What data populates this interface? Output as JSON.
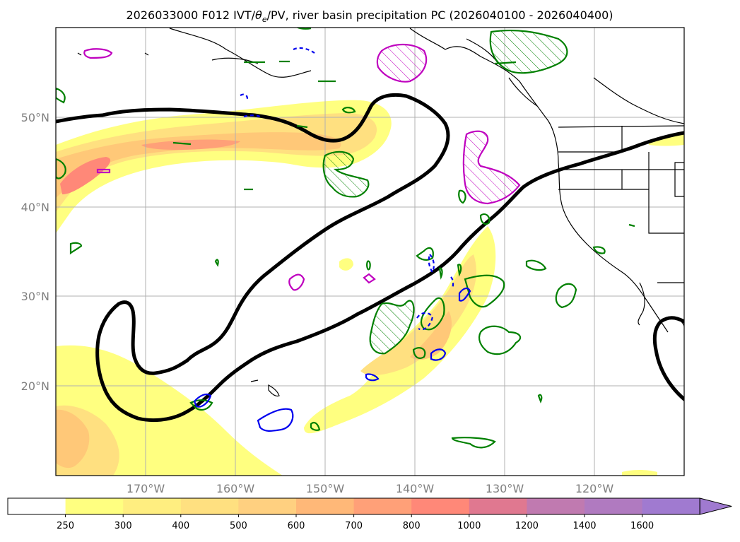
{
  "title": {
    "prefix": "2026033000 F012 IVT/",
    "theta_symbol": "θ",
    "theta_sub": "e",
    "suffix": "/PV, river basin precipitation PC (2026040100 - 2026040400)"
  },
  "map": {
    "projection": "PlateCarree",
    "lon_range": [
      -180,
      -110
    ],
    "lat_range": [
      10,
      60
    ],
    "gridlines": true,
    "lat_ticks": [
      {
        "value": 20,
        "label": "20°N"
      },
      {
        "value": 30,
        "label": "30°N"
      },
      {
        "value": 40,
        "label": "40°N"
      },
      {
        "value": 50,
        "label": "50°N"
      }
    ],
    "lon_ticks": [
      {
        "value": -170,
        "label": "170°W"
      },
      {
        "value": -160,
        "label": "160°W"
      },
      {
        "value": -150,
        "label": "150°W"
      },
      {
        "value": -140,
        "label": "140°W"
      },
      {
        "value": -130,
        "label": "130°W"
      },
      {
        "value": -120,
        "label": "120°W"
      }
    ],
    "layers": {
      "ivt_fill": "IVT shaded (yellow–orange–red–purple)",
      "pv_contour": "black thick contour",
      "precip_pc_green": "green contours with hatch",
      "precip_pc_magenta": "magenta contours with hatch",
      "precip_pc_blue": "blue contours (solid/dashed)"
    },
    "colors": {
      "coast": "#000000",
      "pv": "#000000",
      "green": "#008000",
      "magenta": "#bf00bf",
      "blue": "#0000ee",
      "grid": "#b0b0b0"
    }
  },
  "colorbar": {
    "ticks": [
      "250",
      "300",
      "400",
      "500",
      "600",
      "700",
      "800",
      "1000",
      "1200",
      "1400",
      "1600"
    ],
    "colors": [
      "#ffffff",
      "#ffff80",
      "#ffee80",
      "#ffe080",
      "#ffd080",
      "#ffb878",
      "#ffa078",
      "#ff8878",
      "#e07890",
      "#c07ab0",
      "#b07ac0",
      "#a07ad0"
    ],
    "extend": "max"
  }
}
